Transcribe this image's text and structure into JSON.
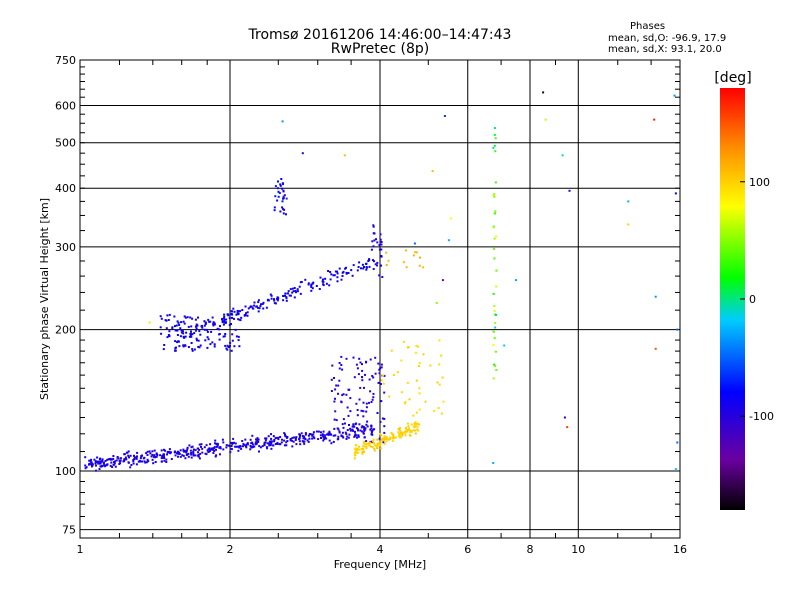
{
  "chart_data": {
    "type": "scatter",
    "title": "Tromsø 20161206 14:46:00–14:47:43",
    "subtitle": "RwPretec (8p)",
    "xlabel": "Frequency [MHz]",
    "ylabel": "Stationary phase Virtual Height [km]",
    "x_scale": "log",
    "y_scale": "log",
    "xlim": [
      1,
      16
    ],
    "ylim": [
      72,
      750
    ],
    "x_ticks": [
      1,
      2,
      4,
      6,
      8,
      10,
      16
    ],
    "x_tick_labels": [
      "1",
      "2",
      "4",
      "6",
      "8",
      "10",
      "16"
    ],
    "y_ticks": [
      75,
      100,
      200,
      300,
      400,
      500,
      600,
      750
    ],
    "y_tick_labels": [
      "75",
      "100",
      "200",
      "300",
      "400",
      "500",
      "600",
      "750"
    ],
    "grid": true,
    "phase_box": {
      "title": "Phases",
      "line_o": "mean, sd,O: -96.9, 17.9",
      "line_x": "mean, sd,X:  93.1, 20.0"
    },
    "colorbar": {
      "label": "[deg]",
      "range": [
        -180,
        180
      ],
      "ticks": [
        100,
        0,
        -100
      ],
      "tick_labels": [
        "100",
        "0",
        "-100"
      ],
      "colormap": "rainbow"
    },
    "clusters": [
      {
        "name": "E low trace blue",
        "x_range": [
          1.02,
          3.9
        ],
        "y_range": [
          103,
          123
        ],
        "phase": -110,
        "phase_sd": 12,
        "count": 520
      },
      {
        "name": "E cusp blue",
        "x_range": [
          3.2,
          4.1
        ],
        "y_range": [
          115,
          175
        ],
        "phase": -115,
        "phase_sd": 10,
        "count": 110
      },
      {
        "name": "E high trace yellow",
        "x_range": [
          3.55,
          4.8
        ],
        "y_range": [
          110,
          125
        ],
        "phase": 100,
        "phase_sd": 10,
        "count": 150
      },
      {
        "name": "E cusp yellow",
        "x_range": [
          4.0,
          5.4
        ],
        "y_range": [
          130,
          195
        ],
        "phase": 95,
        "phase_sd": 12,
        "count": 40
      },
      {
        "name": "F lower blue",
        "x_range": [
          1.45,
          2.1
        ],
        "y_range": [
          180,
          215
        ],
        "phase": -105,
        "phase_sd": 12,
        "count": 130
      },
      {
        "name": "F trace blue",
        "x_range": [
          1.6,
          3.9
        ],
        "y_range": [
          195,
          280
        ],
        "phase": -105,
        "phase_sd": 10,
        "count": 190
      },
      {
        "name": "F cusp blue",
        "x_range": [
          3.85,
          4.05
        ],
        "y_range": [
          255,
          335
        ],
        "phase": -110,
        "phase_sd": 10,
        "count": 30
      },
      {
        "name": "F high yellow",
        "x_range": [
          4.1,
          4.9
        ],
        "y_range": [
          270,
          295
        ],
        "phase": 110,
        "phase_sd": 8,
        "count": 12
      },
      {
        "name": "Column 2.5 MHz",
        "x_range": [
          2.45,
          2.6
        ],
        "y_range": [
          350,
          420
        ],
        "phase": -100,
        "phase_sd": 30,
        "count": 30
      },
      {
        "name": "Column 6.8 MHz",
        "x_range": [
          6.75,
          6.85
        ],
        "y_range": [
          150,
          560
        ],
        "phase": 30,
        "phase_sd": 90,
        "count": 36
      }
    ],
    "isolated_points": [
      {
        "x": 8.5,
        "y": 640,
        "phase": -170
      },
      {
        "x": 8.6,
        "y": 560,
        "phase": 60
      },
      {
        "x": 9.3,
        "y": 470,
        "phase": -10
      },
      {
        "x": 9.6,
        "y": 395,
        "phase": -110
      },
      {
        "x": 9.4,
        "y": 130,
        "phase": -120
      },
      {
        "x": 9.5,
        "y": 124,
        "phase": 160
      },
      {
        "x": 15.6,
        "y": 630,
        "phase": -40
      },
      {
        "x": 14.2,
        "y": 560,
        "phase": 170
      },
      {
        "x": 15.7,
        "y": 390,
        "phase": -100
      },
      {
        "x": 12.6,
        "y": 375,
        "phase": -30
      },
      {
        "x": 12.6,
        "y": 335,
        "phase": 100
      },
      {
        "x": 14.3,
        "y": 235,
        "phase": -40
      },
      {
        "x": 15.8,
        "y": 200,
        "phase": -60
      },
      {
        "x": 14.3,
        "y": 182,
        "phase": 150
      },
      {
        "x": 15.8,
        "y": 115,
        "phase": -60
      },
      {
        "x": 15.7,
        "y": 101,
        "phase": -20
      },
      {
        "x": 5.4,
        "y": 570,
        "phase": -80
      },
      {
        "x": 5.1,
        "y": 435,
        "phase": 110
      },
      {
        "x": 5.55,
        "y": 345,
        "phase": 80
      },
      {
        "x": 5.5,
        "y": 310,
        "phase": -30
      },
      {
        "x": 5.35,
        "y": 255,
        "phase": -140
      },
      {
        "x": 5.2,
        "y": 228,
        "phase": 40
      },
      {
        "x": 7.5,
        "y": 255,
        "phase": -30
      },
      {
        "x": 7.1,
        "y": 185,
        "phase": -20
      },
      {
        "x": 6.75,
        "y": 104,
        "phase": -30
      },
      {
        "x": 3.4,
        "y": 470,
        "phase": 110
      },
      {
        "x": 2.8,
        "y": 475,
        "phase": -110
      },
      {
        "x": 2.55,
        "y": 555,
        "phase": -40
      },
      {
        "x": 1.38,
        "y": 207,
        "phase": 90
      },
      {
        "x": 4.7,
        "y": 305,
        "phase": -60
      }
    ]
  }
}
